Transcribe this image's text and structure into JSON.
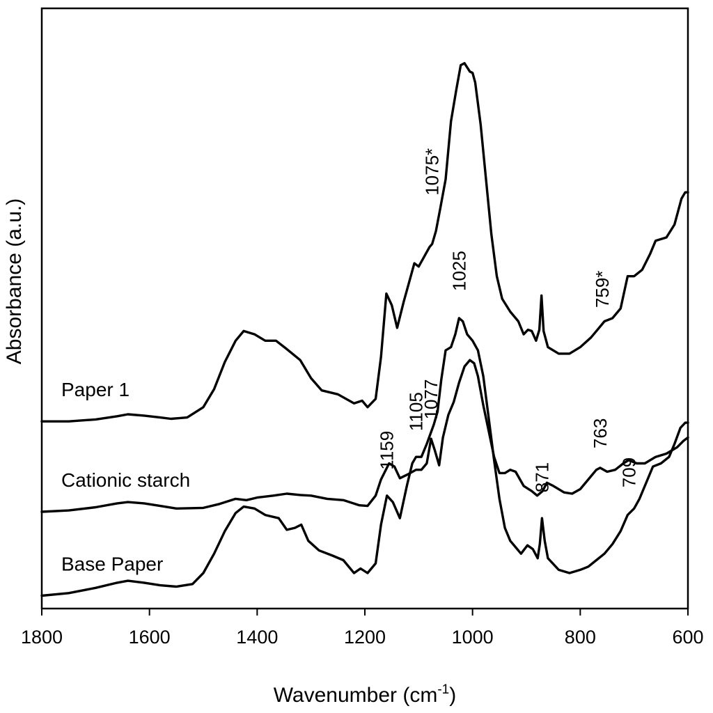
{
  "chart_data": {
    "type": "line",
    "xlabel": "Wavenumber (cm",
    "xlabel_sup": "-1",
    "xlabel_close": ")",
    "ylabel": "Absorbance (a.u.)",
    "xlim": [
      1800,
      600
    ],
    "x_reversed": true,
    "x_ticks": [
      1800,
      1600,
      1400,
      1200,
      1000,
      800,
      600
    ],
    "y_ticks_shown": false,
    "grid": false,
    "series": [
      {
        "name": "Paper 1",
        "offset": 2.6,
        "points": [
          [
            1800,
            0.3
          ],
          [
            1750,
            0.3
          ],
          [
            1700,
            0.33
          ],
          [
            1660,
            0.38
          ],
          [
            1640,
            0.41
          ],
          [
            1610,
            0.39
          ],
          [
            1580,
            0.36
          ],
          [
            1560,
            0.34
          ],
          [
            1530,
            0.36
          ],
          [
            1500,
            0.52
          ],
          [
            1480,
            0.8
          ],
          [
            1460,
            1.22
          ],
          [
            1440,
            1.55
          ],
          [
            1425,
            1.7
          ],
          [
            1405,
            1.65
          ],
          [
            1385,
            1.55
          ],
          [
            1365,
            1.55
          ],
          [
            1345,
            1.42
          ],
          [
            1320,
            1.25
          ],
          [
            1300,
            0.97
          ],
          [
            1280,
            0.78
          ],
          [
            1250,
            0.72
          ],
          [
            1220,
            0.58
          ],
          [
            1205,
            0.62
          ],
          [
            1195,
            0.52
          ],
          [
            1180,
            0.65
          ],
          [
            1170,
            1.3
          ],
          [
            1160,
            2.28
          ],
          [
            1150,
            2.1
          ],
          [
            1140,
            1.75
          ],
          [
            1128,
            2.15
          ],
          [
            1118,
            2.45
          ],
          [
            1108,
            2.75
          ],
          [
            1100,
            2.7
          ],
          [
            1090,
            2.85
          ],
          [
            1080,
            3.0
          ],
          [
            1075,
            3.05
          ],
          [
            1068,
            3.25
          ],
          [
            1060,
            3.6
          ],
          [
            1050,
            4.05
          ],
          [
            1040,
            4.95
          ],
          [
            1030,
            5.45
          ],
          [
            1022,
            5.82
          ],
          [
            1015,
            5.85
          ],
          [
            1005,
            5.72
          ],
          [
            1000,
            5.7
          ],
          [
            995,
            5.55
          ],
          [
            985,
            4.9
          ],
          [
            975,
            4.05
          ],
          [
            965,
            3.2
          ],
          [
            955,
            2.55
          ],
          [
            945,
            2.2
          ],
          [
            930,
            2.0
          ],
          [
            915,
            1.85
          ],
          [
            905,
            1.65
          ],
          [
            897,
            1.72
          ],
          [
            890,
            1.7
          ],
          [
            882,
            1.55
          ],
          [
            876,
            1.72
          ],
          [
            872,
            2.25
          ],
          [
            868,
            1.7
          ],
          [
            860,
            1.45
          ],
          [
            840,
            1.35
          ],
          [
            820,
            1.35
          ],
          [
            800,
            1.45
          ],
          [
            780,
            1.6
          ],
          [
            765,
            1.75
          ],
          [
            755,
            1.85
          ],
          [
            740,
            1.9
          ],
          [
            725,
            2.05
          ],
          [
            712,
            2.55
          ],
          [
            700,
            2.55
          ],
          [
            685,
            2.65
          ],
          [
            670,
            2.9
          ],
          [
            660,
            3.1
          ],
          [
            640,
            3.15
          ],
          [
            625,
            3.35
          ],
          [
            612,
            3.75
          ],
          [
            605,
            3.85
          ],
          [
            600,
            3.85
          ]
        ]
      },
      {
        "name": "Cationic starch",
        "offset": 1.3,
        "points": [
          [
            1800,
            0.2
          ],
          [
            1750,
            0.22
          ],
          [
            1700,
            0.27
          ],
          [
            1660,
            0.33
          ],
          [
            1640,
            0.35
          ],
          [
            1610,
            0.33
          ],
          [
            1580,
            0.29
          ],
          [
            1550,
            0.25
          ],
          [
            1500,
            0.26
          ],
          [
            1470,
            0.32
          ],
          [
            1440,
            0.4
          ],
          [
            1420,
            0.38
          ],
          [
            1400,
            0.42
          ],
          [
            1370,
            0.45
          ],
          [
            1345,
            0.48
          ],
          [
            1320,
            0.46
          ],
          [
            1300,
            0.45
          ],
          [
            1270,
            0.4
          ],
          [
            1240,
            0.38
          ],
          [
            1210,
            0.3
          ],
          [
            1195,
            0.29
          ],
          [
            1180,
            0.45
          ],
          [
            1170,
            0.7
          ],
          [
            1155,
            0.95
          ],
          [
            1145,
            0.9
          ],
          [
            1135,
            0.72
          ],
          [
            1120,
            0.78
          ],
          [
            1105,
            0.85
          ],
          [
            1095,
            0.85
          ],
          [
            1085,
            0.95
          ],
          [
            1077,
            1.33
          ],
          [
            1070,
            1.15
          ],
          [
            1062,
            0.92
          ],
          [
            1055,
            1.35
          ],
          [
            1045,
            1.7
          ],
          [
            1035,
            1.9
          ],
          [
            1025,
            2.2
          ],
          [
            1015,
            2.45
          ],
          [
            1005,
            2.55
          ],
          [
            997,
            2.5
          ],
          [
            990,
            2.3
          ],
          [
            980,
            1.85
          ],
          [
            970,
            1.45
          ],
          [
            960,
            1.05
          ],
          [
            950,
            0.8
          ],
          [
            940,
            0.8
          ],
          [
            930,
            0.85
          ],
          [
            920,
            0.82
          ],
          [
            905,
            0.6
          ],
          [
            890,
            0.52
          ],
          [
            880,
            0.45
          ],
          [
            870,
            0.52
          ],
          [
            862,
            0.65
          ],
          [
            850,
            0.6
          ],
          [
            830,
            0.5
          ],
          [
            815,
            0.48
          ],
          [
            800,
            0.55
          ],
          [
            785,
            0.7
          ],
          [
            770,
            0.85
          ],
          [
            763,
            0.88
          ],
          [
            750,
            0.82
          ],
          [
            735,
            0.85
          ],
          [
            720,
            0.95
          ],
          [
            710,
            1.0
          ],
          [
            695,
            0.95
          ],
          [
            680,
            0.95
          ],
          [
            660,
            1.05
          ],
          [
            640,
            1.1
          ],
          [
            620,
            1.2
          ],
          [
            608,
            1.3
          ],
          [
            600,
            1.35
          ]
        ]
      },
      {
        "name": "Base Paper",
        "offset": 0.0,
        "points": [
          [
            1800,
            0.2
          ],
          [
            1750,
            0.24
          ],
          [
            1700,
            0.32
          ],
          [
            1660,
            0.4
          ],
          [
            1640,
            0.43
          ],
          [
            1610,
            0.4
          ],
          [
            1580,
            0.36
          ],
          [
            1550,
            0.34
          ],
          [
            1520,
            0.38
          ],
          [
            1500,
            0.55
          ],
          [
            1480,
            0.85
          ],
          [
            1460,
            1.2
          ],
          [
            1440,
            1.48
          ],
          [
            1425,
            1.58
          ],
          [
            1405,
            1.55
          ],
          [
            1385,
            1.45
          ],
          [
            1360,
            1.4
          ],
          [
            1345,
            1.22
          ],
          [
            1330,
            1.25
          ],
          [
            1318,
            1.3
          ],
          [
            1305,
            1.05
          ],
          [
            1285,
            0.9
          ],
          [
            1260,
            0.82
          ],
          [
            1240,
            0.75
          ],
          [
            1220,
            0.55
          ],
          [
            1208,
            0.62
          ],
          [
            1195,
            0.55
          ],
          [
            1180,
            0.7
          ],
          [
            1170,
            1.3
          ],
          [
            1159,
            1.75
          ],
          [
            1148,
            1.65
          ],
          [
            1135,
            1.4
          ],
          [
            1122,
            1.9
          ],
          [
            1112,
            2.25
          ],
          [
            1105,
            2.35
          ],
          [
            1095,
            2.35
          ],
          [
            1085,
            2.55
          ],
          [
            1072,
            2.85
          ],
          [
            1065,
            3.05
          ],
          [
            1058,
            3.55
          ],
          [
            1050,
            4.0
          ],
          [
            1040,
            4.05
          ],
          [
            1032,
            4.25
          ],
          [
            1025,
            4.5
          ],
          [
            1018,
            4.45
          ],
          [
            1010,
            4.25
          ],
          [
            1000,
            4.15
          ],
          [
            990,
            4.0
          ],
          [
            980,
            3.6
          ],
          [
            970,
            2.95
          ],
          [
            960,
            2.3
          ],
          [
            950,
            1.7
          ],
          [
            940,
            1.25
          ],
          [
            930,
            1.05
          ],
          [
            920,
            0.95
          ],
          [
            910,
            0.85
          ],
          [
            898,
            0.98
          ],
          [
            888,
            0.92
          ],
          [
            879,
            0.78
          ],
          [
            875,
            1.0
          ],
          [
            871,
            1.4
          ],
          [
            866,
            1.05
          ],
          [
            860,
            0.78
          ],
          [
            840,
            0.6
          ],
          [
            820,
            0.55
          ],
          [
            800,
            0.6
          ],
          [
            785,
            0.65
          ],
          [
            770,
            0.75
          ],
          [
            755,
            0.85
          ],
          [
            740,
            1.0
          ],
          [
            725,
            1.2
          ],
          [
            712,
            1.45
          ],
          [
            700,
            1.55
          ],
          [
            690,
            1.7
          ],
          [
            675,
            2.0
          ],
          [
            665,
            2.2
          ],
          [
            650,
            2.25
          ],
          [
            635,
            2.35
          ],
          [
            625,
            2.55
          ],
          [
            614,
            2.8
          ],
          [
            605,
            2.88
          ],
          [
            600,
            2.88
          ]
        ]
      }
    ],
    "series_labels": [
      "Paper 1",
      "Cationic starch",
      "Base Paper"
    ],
    "annotations": [
      {
        "text": "1075*",
        "series": 0,
        "x": 1075,
        "dy": 0.75
      },
      {
        "text": "759*",
        "series": 0,
        "x": 759,
        "dy": 0.25
      },
      {
        "text": "1077",
        "series": 1,
        "x": 1077,
        "dy": 0.3
      },
      {
        "text": "763",
        "series": 1,
        "x": 763,
        "dy": 0.3
      },
      {
        "text": "1025",
        "series": 2,
        "x": 1025,
        "dy": 0.42
      },
      {
        "text": "1159",
        "series": 2,
        "x": 1159,
        "dy": 0.4
      },
      {
        "text": "1105",
        "series": 2,
        "x": 1105,
        "dy": 0.4
      },
      {
        "text": "871",
        "series": 2,
        "x": 871,
        "dy": 0.4
      },
      {
        "text": "709",
        "series": 2,
        "x": 709,
        "dy": 0.4
      }
    ]
  }
}
